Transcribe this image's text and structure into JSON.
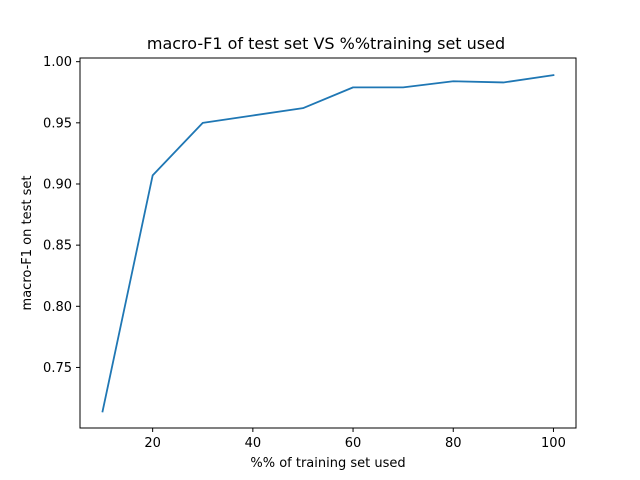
{
  "chart_data": {
    "type": "line",
    "title": "macro-F1 of test set VS %%training set used",
    "xlabel": "%% of training set used",
    "ylabel": "macro-F1 on test set",
    "xlim": [
      5.5,
      104.5
    ],
    "ylim": [
      0.7005,
      1.003
    ],
    "xticks": [
      20,
      40,
      60,
      80,
      100
    ],
    "yticks": [
      0.75,
      0.8,
      0.85,
      0.9,
      0.95,
      1.0
    ],
    "xtick_labels": [
      "20",
      "40",
      "60",
      "80",
      "100"
    ],
    "ytick_labels": [
      "0.75",
      "0.80",
      "0.85",
      "0.90",
      "0.95",
      "1.00"
    ],
    "grid": false,
    "series": [
      {
        "color": "#1f77b4",
        "x": [
          10,
          20,
          30,
          40,
          50,
          60,
          70,
          80,
          90,
          100
        ],
        "y": [
          0.714,
          0.907,
          0.95,
          0.956,
          0.962,
          0.979,
          0.979,
          0.984,
          0.983,
          0.989
        ]
      }
    ]
  }
}
